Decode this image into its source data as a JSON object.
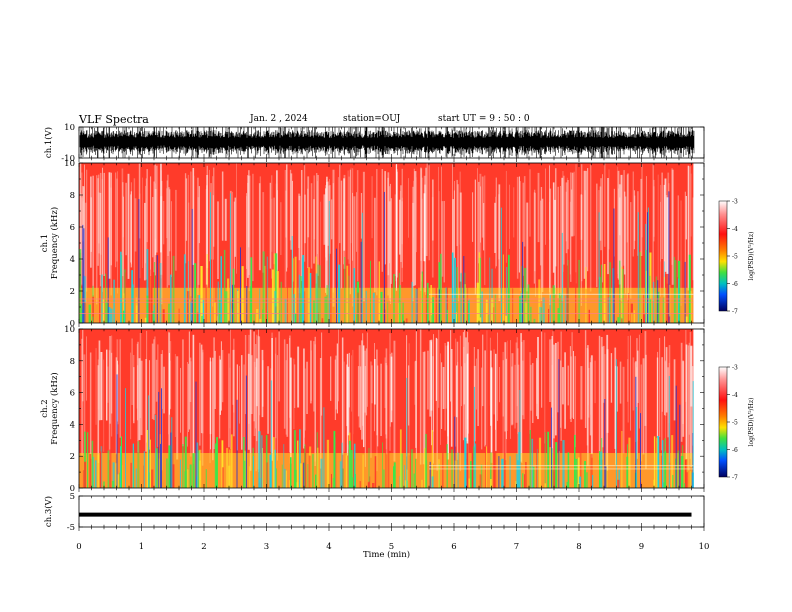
{
  "header": {
    "title": "VLF Spectra",
    "date": "Jan. 2 , 2024",
    "station": "station=OUJ",
    "start": "start UT =  9 : 50 : 0"
  },
  "chart_data": [
    {
      "name": "ch1-waveform",
      "type": "line",
      "ylabel": "ch.1(V)",
      "ylim": [
        -10,
        10
      ],
      "yticks": [
        "10",
        "-10"
      ],
      "xlim": [
        0,
        10
      ]
    },
    {
      "name": "ch1-spectrogram",
      "type": "heatmap",
      "ylabel": "ch.1\nFrequency (kHz)",
      "ylim": [
        0,
        10
      ],
      "yticks": [
        "0",
        "2",
        "4",
        "6",
        "8",
        "10"
      ],
      "xlim": [
        0,
        10
      ],
      "colorbar": {
        "label": "log(PSD)(V²/Hz)",
        "range": [
          -7,
          -3
        ],
        "ticks": [
          "-3",
          "-4",
          "-5",
          "-6",
          "-7"
        ]
      }
    },
    {
      "name": "ch2-spectrogram",
      "type": "heatmap",
      "ylabel": "ch.2\nFrequency (kHz)",
      "ylim": [
        0,
        10
      ],
      "yticks": [
        "0",
        "2",
        "4",
        "6",
        "8",
        "10"
      ],
      "xlim": [
        0,
        10
      ],
      "colorbar": {
        "label": "log(PSD)(V²/Hz)",
        "range": [
          -7,
          -3
        ],
        "ticks": [
          "-3",
          "-4",
          "-5",
          "-6",
          "-7"
        ]
      }
    },
    {
      "name": "ch3-waveform",
      "type": "line",
      "ylabel": "ch.3(V)",
      "ylim": [
        -5,
        5
      ],
      "yticks": [
        "5",
        "-5"
      ],
      "xlim": [
        0,
        10
      ],
      "value": -1
    }
  ],
  "x_axis": {
    "label": "Time (min)",
    "ticks": [
      "0",
      "1",
      "2",
      "3",
      "4",
      "5",
      "6",
      "7",
      "8",
      "9",
      "10"
    ]
  },
  "colors": {
    "spectro_base": "#ff3b2a",
    "spectro_light": "#ffc8c0",
    "spectro_yellow": "#ffe62a",
    "spectro_green": "#39e84a",
    "spectro_cyan": "#20d0e0",
    "spectro_blue": "#2030d0",
    "waveform": "#000000"
  }
}
